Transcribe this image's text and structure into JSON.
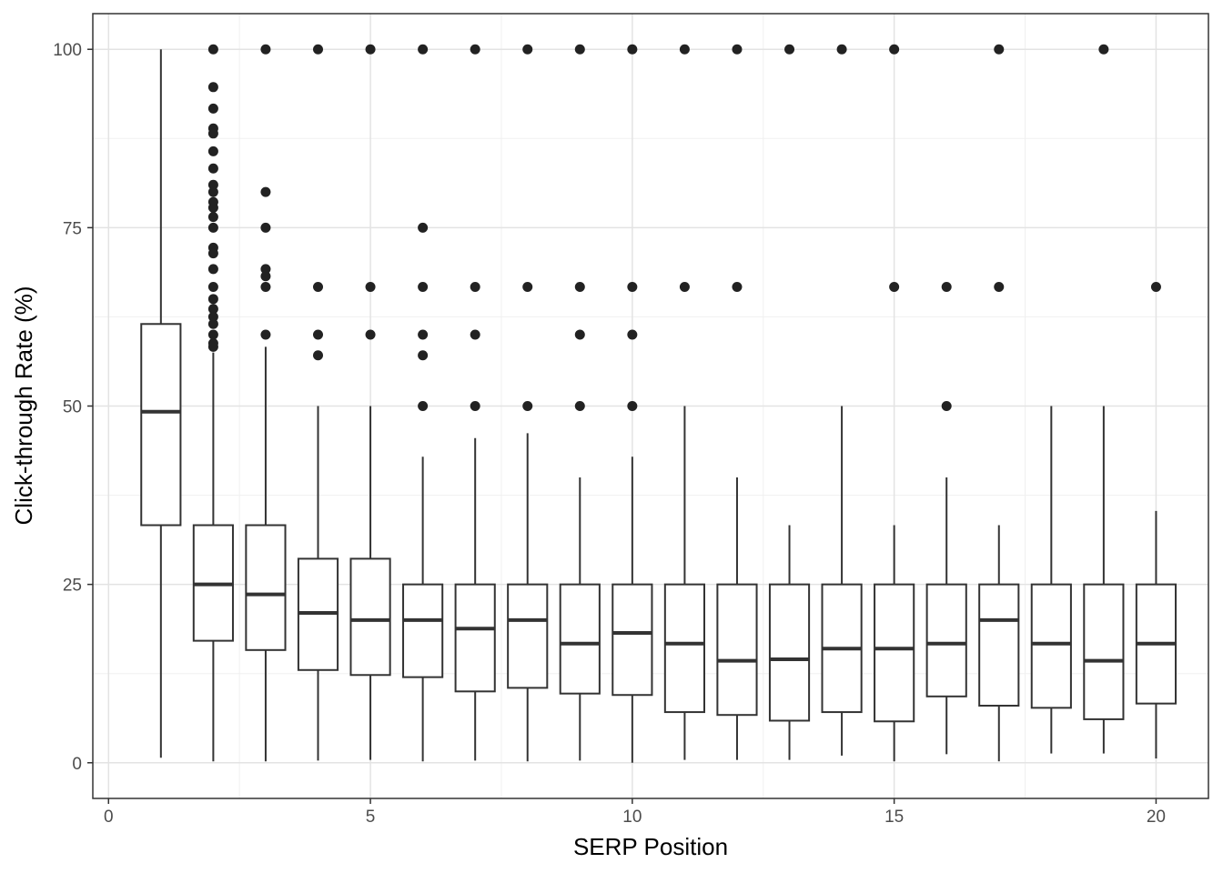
{
  "chart_data": {
    "type": "boxplot",
    "xlabel": "SERP Position",
    "ylabel": "Click-through Rate (%)",
    "xlim": [
      -0.3,
      21.0
    ],
    "ylim": [
      -5,
      105
    ],
    "x_ticks": [
      0,
      5,
      10,
      15,
      20
    ],
    "y_ticks": [
      0,
      25,
      50,
      75,
      100
    ],
    "grid": true,
    "colors": {
      "box": "#333333",
      "outlier": "#222222",
      "grid_major": "#e3e3e3",
      "grid_minor": "#f0f0f0",
      "panel_border": "#333333"
    },
    "boxes": [
      {
        "x": 1,
        "whisker_low": 0.7,
        "q1": 33.3,
        "median": 49.2,
        "q3": 61.5,
        "whisker_high": 100.0
      },
      {
        "x": 2,
        "whisker_low": 0.2,
        "q1": 17.1,
        "median": 25.0,
        "q3": 33.3,
        "whisker_high": 57.5
      },
      {
        "x": 3,
        "whisker_low": 0.2,
        "q1": 15.8,
        "median": 23.6,
        "q3": 33.3,
        "whisker_high": 58.3
      },
      {
        "x": 4,
        "whisker_low": 0.3,
        "q1": 13.0,
        "median": 21.0,
        "q3": 28.6,
        "whisker_high": 50.0
      },
      {
        "x": 5,
        "whisker_low": 0.4,
        "q1": 12.3,
        "median": 20.0,
        "q3": 28.6,
        "whisker_high": 50.0
      },
      {
        "x": 6,
        "whisker_low": 0.2,
        "q1": 12.0,
        "median": 20.0,
        "q3": 25.0,
        "whisker_high": 42.9
      },
      {
        "x": 7,
        "whisker_low": 0.3,
        "q1": 10.0,
        "median": 18.8,
        "q3": 25.0,
        "whisker_high": 45.5
      },
      {
        "x": 8,
        "whisker_low": 0.2,
        "q1": 10.5,
        "median": 20.0,
        "q3": 25.0,
        "whisker_high": 46.2
      },
      {
        "x": 9,
        "whisker_low": 0.3,
        "q1": 9.7,
        "median": 16.7,
        "q3": 25.0,
        "whisker_high": 40.0
      },
      {
        "x": 10,
        "whisker_low": 0.0,
        "q1": 9.5,
        "median": 18.2,
        "q3": 25.0,
        "whisker_high": 42.9
      },
      {
        "x": 11,
        "whisker_low": 0.4,
        "q1": 7.1,
        "median": 16.7,
        "q3": 25.0,
        "whisker_high": 50.0
      },
      {
        "x": 12,
        "whisker_low": 0.4,
        "q1": 6.7,
        "median": 14.3,
        "q3": 25.0,
        "whisker_high": 40.0
      },
      {
        "x": 13,
        "whisker_low": 0.4,
        "q1": 5.9,
        "median": 14.5,
        "q3": 25.0,
        "whisker_high": 33.3
      },
      {
        "x": 14,
        "whisker_low": 1.0,
        "q1": 7.1,
        "median": 16.0,
        "q3": 25.0,
        "whisker_high": 50.0
      },
      {
        "x": 15,
        "whisker_low": 0.2,
        "q1": 5.8,
        "median": 16.0,
        "q3": 25.0,
        "whisker_high": 33.3
      },
      {
        "x": 16,
        "whisker_low": 1.2,
        "q1": 9.3,
        "median": 16.7,
        "q3": 25.0,
        "whisker_high": 40.0
      },
      {
        "x": 17,
        "whisker_low": 0.2,
        "q1": 8.0,
        "median": 20.0,
        "q3": 25.0,
        "whisker_high": 33.3
      },
      {
        "x": 18,
        "whisker_low": 1.3,
        "q1": 7.7,
        "median": 16.7,
        "q3": 25.0,
        "whisker_high": 50.0
      },
      {
        "x": 19,
        "whisker_low": 1.3,
        "q1": 6.1,
        "median": 14.3,
        "q3": 25.0,
        "whisker_high": 50.0
      },
      {
        "x": 20,
        "whisker_low": 0.6,
        "q1": 8.3,
        "median": 16.7,
        "q3": 25.0,
        "whisker_high": 35.3
      }
    ],
    "outliers": [
      {
        "x": 2,
        "y": [
          100,
          94.7,
          91.7,
          88.9,
          88.2,
          85.7,
          83.3,
          81.0,
          80.0,
          78.6,
          77.8,
          76.5,
          75.0,
          72.2,
          71.4,
          69.2,
          66.7,
          65.0,
          63.6,
          62.5,
          61.5,
          60.0,
          58.8,
          58.3
        ]
      },
      {
        "x": 3,
        "y": [
          100,
          80.0,
          75.0,
          69.2,
          68.2,
          66.7,
          60.0
        ]
      },
      {
        "x": 4,
        "y": [
          100,
          66.7,
          60.0,
          57.1
        ]
      },
      {
        "x": 5,
        "y": [
          100,
          66.7,
          60.0
        ]
      },
      {
        "x": 6,
        "y": [
          100,
          75.0,
          66.7,
          60.0,
          57.1,
          50.0
        ]
      },
      {
        "x": 7,
        "y": [
          100,
          66.7,
          60.0,
          50.0
        ]
      },
      {
        "x": 8,
        "y": [
          100,
          66.7,
          50.0
        ]
      },
      {
        "x": 9,
        "y": [
          100,
          66.7,
          60.0,
          50.0
        ]
      },
      {
        "x": 10,
        "y": [
          100,
          66.7,
          60.0,
          50.0
        ]
      },
      {
        "x": 11,
        "y": [
          100,
          66.7
        ]
      },
      {
        "x": 12,
        "y": [
          100,
          66.7
        ]
      },
      {
        "x": 13,
        "y": [
          100
        ]
      },
      {
        "x": 14,
        "y": [
          100
        ]
      },
      {
        "x": 15,
        "y": [
          100,
          66.7
        ]
      },
      {
        "x": 16,
        "y": [
          66.7,
          50.0
        ]
      },
      {
        "x": 17,
        "y": [
          100,
          66.7
        ]
      },
      {
        "x": 19,
        "y": [
          100
        ]
      },
      {
        "x": 20,
        "y": [
          66.7
        ]
      }
    ]
  }
}
